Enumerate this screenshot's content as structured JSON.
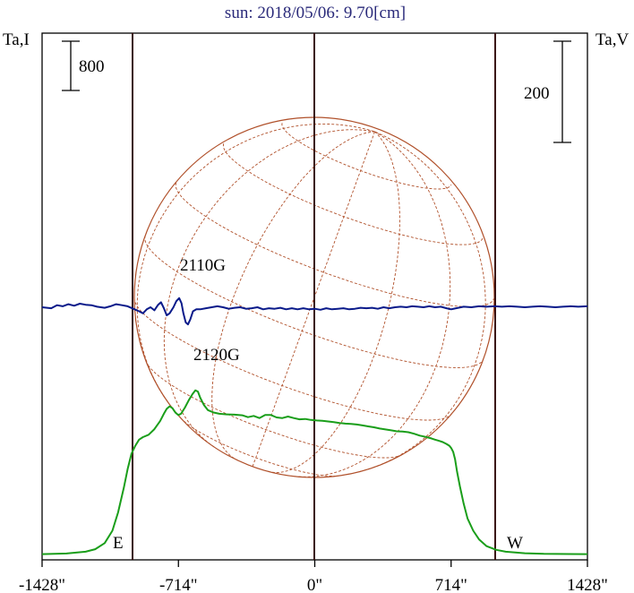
{
  "chart_data": {
    "type": "line",
    "title": "sun: 2018/05/06: 9.70[cm]",
    "left_axis_label": "Ta,I",
    "right_axis_label": "Ta,V",
    "xlim": [
      -1428,
      1428
    ],
    "x_ticks": [
      {
        "value": -1428,
        "label": "-1428\""
      },
      {
        "value": -714,
        "label": "-714\""
      },
      {
        "value": 0,
        "label": "0\""
      },
      {
        "value": 714,
        "label": "714\""
      },
      {
        "value": 1428,
        "label": "1428\""
      }
    ],
    "limb_markers": [
      {
        "value": -714,
        "label": ""
      },
      {
        "value": 0,
        "label": ""
      },
      {
        "value": 714,
        "label": ""
      }
    ],
    "scale_bars": [
      {
        "axis": "left",
        "label": "800"
      },
      {
        "axis": "right",
        "label": "200"
      }
    ],
    "edge_labels": {
      "east": "E",
      "west": "W"
    },
    "annotations": [
      {
        "text": "2110G"
      },
      {
        "text": "2120G"
      }
    ],
    "colors": {
      "stokes_I": "#1a9e1a",
      "stokes_V": "#0a1a8a",
      "grid": "#b0502a",
      "frame": "#3a1010",
      "title": "#2a2a7a"
    },
    "series": [
      {
        "name": "I",
        "color": "#1a9e1a",
        "points": [
          [
            -1428,
            20
          ],
          [
            -1300,
            30
          ],
          [
            -1200,
            60
          ],
          [
            -1150,
            100
          ],
          [
            -1100,
            200
          ],
          [
            -1060,
            400
          ],
          [
            -1030,
            700
          ],
          [
            -1000,
            1100
          ],
          [
            -980,
            1400
          ],
          [
            -960,
            1650
          ],
          [
            -940,
            1780
          ],
          [
            -920,
            1880
          ],
          [
            -900,
            1920
          ],
          [
            -870,
            1960
          ],
          [
            -840,
            2050
          ],
          [
            -810,
            2180
          ],
          [
            -790,
            2300
          ],
          [
            -775,
            2380
          ],
          [
            -760,
            2420
          ],
          [
            -745,
            2390
          ],
          [
            -730,
            2320
          ],
          [
            -715,
            2280
          ],
          [
            -700,
            2300
          ],
          [
            -680,
            2400
          ],
          [
            -660,
            2520
          ],
          [
            -640,
            2620
          ],
          [
            -625,
            2680
          ],
          [
            -612,
            2660
          ],
          [
            -600,
            2560
          ],
          [
            -580,
            2440
          ],
          [
            -560,
            2360
          ],
          [
            -530,
            2320
          ],
          [
            -500,
            2300
          ],
          [
            -460,
            2290
          ],
          [
            -420,
            2285
          ],
          [
            -380,
            2275
          ],
          [
            -350,
            2245
          ],
          [
            -320,
            2265
          ],
          [
            -290,
            2230
          ],
          [
            -260,
            2280
          ],
          [
            -230,
            2280
          ],
          [
            -200,
            2240
          ],
          [
            -170,
            2230
          ],
          [
            -140,
            2255
          ],
          [
            -110,
            2230
          ],
          [
            -80,
            2210
          ],
          [
            -50,
            2215
          ],
          [
            -20,
            2200
          ],
          [
            10,
            2190
          ],
          [
            40,
            2185
          ],
          [
            70,
            2175
          ],
          [
            100,
            2165
          ],
          [
            130,
            2150
          ],
          [
            160,
            2140
          ],
          [
            190,
            2135
          ],
          [
            220,
            2125
          ],
          [
            250,
            2110
          ],
          [
            280,
            2095
          ],
          [
            310,
            2080
          ],
          [
            340,
            2060
          ],
          [
            370,
            2045
          ],
          [
            400,
            2030
          ],
          [
            430,
            2015
          ],
          [
            460,
            2010
          ],
          [
            490,
            2000
          ],
          [
            520,
            1975
          ],
          [
            550,
            1945
          ],
          [
            580,
            1925
          ],
          [
            610,
            1900
          ],
          [
            630,
            1880
          ],
          [
            650,
            1860
          ],
          [
            670,
            1840
          ],
          [
            690,
            1810
          ],
          [
            705,
            1780
          ],
          [
            715,
            1740
          ],
          [
            725,
            1680
          ],
          [
            735,
            1560
          ],
          [
            745,
            1360
          ],
          [
            760,
            1120
          ],
          [
            780,
            840
          ],
          [
            800,
            600
          ],
          [
            830,
            400
          ],
          [
            860,
            260
          ],
          [
            900,
            150
          ],
          [
            950,
            90
          ],
          [
            1000,
            60
          ],
          [
            1100,
            35
          ],
          [
            1200,
            25
          ],
          [
            1428,
            20
          ]
        ]
      },
      {
        "name": "V",
        "color": "#0a1a8a",
        "points": [
          [
            -1428,
            0
          ],
          [
            -1380,
            -2
          ],
          [
            -1350,
            4
          ],
          [
            -1320,
            2
          ],
          [
            -1290,
            6
          ],
          [
            -1260,
            3
          ],
          [
            -1230,
            7
          ],
          [
            -1200,
            5
          ],
          [
            -1170,
            4
          ],
          [
            -1140,
            1
          ],
          [
            -1100,
            -1
          ],
          [
            -1070,
            2
          ],
          [
            -1040,
            6
          ],
          [
            -1010,
            4
          ],
          [
            -980,
            2
          ],
          [
            -950,
            -3
          ],
          [
            -920,
            -8
          ],
          [
            -900,
            -12
          ],
          [
            -880,
            -4
          ],
          [
            -860,
            0
          ],
          [
            -840,
            -6
          ],
          [
            -820,
            5
          ],
          [
            -805,
            10
          ],
          [
            -790,
            -2
          ],
          [
            -775,
            -16
          ],
          [
            -760,
            -12
          ],
          [
            -740,
            0
          ],
          [
            -725,
            12
          ],
          [
            -710,
            18
          ],
          [
            -698,
            8
          ],
          [
            -688,
            -12
          ],
          [
            -676,
            -30
          ],
          [
            -664,
            -34
          ],
          [
            -652,
            -24
          ],
          [
            -638,
            -8
          ],
          [
            -620,
            -4
          ],
          [
            -600,
            -4
          ],
          [
            -570,
            -2
          ],
          [
            -540,
            0
          ],
          [
            -510,
            2
          ],
          [
            -480,
            0
          ],
          [
            -450,
            -3
          ],
          [
            -420,
            -1
          ],
          [
            -390,
            0
          ],
          [
            -360,
            -3
          ],
          [
            -330,
            -2
          ],
          [
            -300,
            0
          ],
          [
            -270,
            -4
          ],
          [
            -240,
            -2
          ],
          [
            -210,
            -3
          ],
          [
            -180,
            -1
          ],
          [
            -150,
            -4
          ],
          [
            -120,
            -2
          ],
          [
            -90,
            -4
          ],
          [
            -60,
            -2
          ],
          [
            -30,
            -4
          ],
          [
            0,
            -3
          ],
          [
            30,
            -5
          ],
          [
            60,
            -2
          ],
          [
            90,
            -4
          ],
          [
            120,
            -3
          ],
          [
            150,
            -2
          ],
          [
            180,
            -4
          ],
          [
            210,
            -3
          ],
          [
            240,
            -1
          ],
          [
            270,
            -2
          ],
          [
            300,
            -1
          ],
          [
            330,
            -3
          ],
          [
            360,
            0
          ],
          [
            390,
            -2
          ],
          [
            420,
            0
          ],
          [
            450,
            1
          ],
          [
            480,
            0
          ],
          [
            510,
            2
          ],
          [
            540,
            1
          ],
          [
            570,
            0
          ],
          [
            600,
            2
          ],
          [
            630,
            0
          ],
          [
            660,
            1
          ],
          [
            690,
            -2
          ],
          [
            714,
            -4
          ],
          [
            740,
            -2
          ],
          [
            780,
            1
          ],
          [
            820,
            0
          ],
          [
            860,
            2
          ],
          [
            900,
            1
          ],
          [
            940,
            2
          ],
          [
            980,
            1
          ],
          [
            1020,
            2
          ],
          [
            1060,
            1
          ],
          [
            1100,
            0
          ],
          [
            1140,
            1
          ],
          [
            1180,
            2
          ],
          [
            1220,
            1
          ],
          [
            1260,
            0
          ],
          [
            1300,
            1
          ],
          [
            1340,
            2
          ],
          [
            1380,
            1
          ],
          [
            1428,
            2
          ]
        ]
      }
    ]
  }
}
